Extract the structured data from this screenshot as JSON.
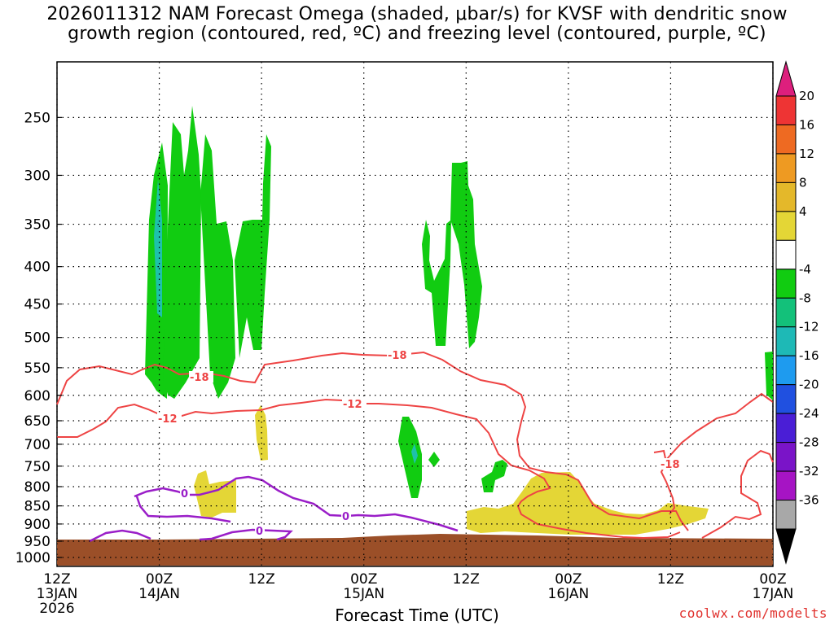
{
  "title_lines": [
    "2026011312 NAM Forecast Omega (shaded, μbar/s) for KVSF with dendritic snow",
    "growth region (contoured, red, ºC) and freezing level (contoured, purple, ºC)"
  ],
  "xlabel": "Forecast Time (UTC)",
  "credit": "coolwx.com/modelts",
  "colors": {
    "grid": "#000000",
    "ground": "#9b4f28",
    "dgz_contour": "#ee4444",
    "freezing_contour": "#9a1ec8",
    "omega_pos_4_8": "#e4d636",
    "omega_neg_4_8": "#11cc11",
    "omega_neg_12_16": "#1ec1ab"
  },
  "chart_data": {
    "type": "heatmap",
    "title": "2026011312 NAM Forecast Omega (shaded, μbar/s) for KVSF with dendritic snow growth region (contoured, red, ºC) and freezing level (contoured, purple, ºC)",
    "xlabel": "Forecast Time (UTC)",
    "ylabel": "",
    "x_range_hours": [
      0,
      84
    ],
    "y_pressure_levels": [
      250,
      300,
      350,
      400,
      450,
      500,
      550,
      600,
      650,
      700,
      750,
      800,
      850,
      900,
      950,
      1000
    ],
    "x_ticks": [
      {
        "hour": 0,
        "lines": [
          "12Z",
          "13JAN",
          "2026"
        ]
      },
      {
        "hour": 12,
        "lines": [
          "00Z",
          "14JAN"
        ]
      },
      {
        "hour": 24,
        "lines": [
          "12Z"
        ]
      },
      {
        "hour": 36,
        "lines": [
          "00Z",
          "15JAN"
        ]
      },
      {
        "hour": 48,
        "lines": [
          "12Z"
        ]
      },
      {
        "hour": 60,
        "lines": [
          "00Z",
          "16JAN"
        ]
      },
      {
        "hour": 72,
        "lines": [
          "12Z"
        ]
      },
      {
        "hour": 84,
        "lines": [
          "00Z",
          "17JAN"
        ]
      }
    ],
    "grid": true,
    "colorbar": {
      "labels": [
        "20",
        "16",
        "12",
        "8",
        "4",
        "-4",
        "-8",
        "-12",
        "-16",
        "-20",
        "-24",
        "-28",
        "-32",
        "-36"
      ],
      "colors": [
        "#dd1f7d",
        "#ee3434",
        "#ee6a22",
        "#ee9a22",
        "#e4b82a",
        "#e4d636",
        "#ffffff",
        "#11cc11",
        "#13c17a",
        "#1eb9b6",
        "#1e9bef",
        "#2050e0",
        "#4a1ed6",
        "#7a14c8",
        "#a614c4",
        "#a8a8a8",
        "#000000"
      ],
      "placement": "right"
    },
    "contour_labels": [
      {
        "value": "-18",
        "color": "dgz"
      },
      {
        "value": "-18",
        "color": "dgz"
      },
      {
        "value": "-18",
        "color": "dgz"
      },
      {
        "value": "-12",
        "color": "dgz"
      },
      {
        "value": "-12",
        "color": "dgz"
      },
      {
        "value": "0",
        "color": "freezing"
      },
      {
        "value": "0",
        "color": "freezing"
      },
      {
        "value": "0",
        "color": "freezing"
      }
    ]
  }
}
